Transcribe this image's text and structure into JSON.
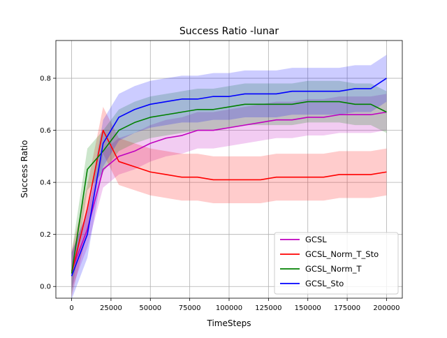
{
  "chart_data": {
    "type": "line",
    "title": "Success Ratio -lunar",
    "xlabel": "TimeSteps",
    "ylabel": "Success Ratio",
    "xlim": [
      -10000,
      210000
    ],
    "ylim": [
      -0.045,
      0.945
    ],
    "xticks": [
      0,
      25000,
      50000,
      75000,
      100000,
      125000,
      150000,
      175000,
      200000
    ],
    "yticks": [
      0.0,
      0.2,
      0.4,
      0.6,
      0.8
    ],
    "grid": true,
    "legend_position": "lower-right",
    "shaded_bands": true,
    "series": [
      {
        "name": "GCSL",
        "color": "#bf00bf",
        "x": [
          0,
          10000,
          20000,
          30000,
          40000,
          50000,
          60000,
          70000,
          80000,
          90000,
          100000,
          110000,
          120000,
          130000,
          140000,
          150000,
          160000,
          170000,
          180000,
          190000,
          200000
        ],
        "y": [
          0.06,
          0.22,
          0.45,
          0.5,
          0.52,
          0.55,
          0.57,
          0.58,
          0.6,
          0.6,
          0.61,
          0.62,
          0.63,
          0.64,
          0.64,
          0.65,
          0.65,
          0.66,
          0.66,
          0.66,
          0.67
        ],
        "band": 0.07
      },
      {
        "name": "GCSL_Norm_T_Sto",
        "color": "#ff0000",
        "x": [
          0,
          10000,
          20000,
          30000,
          40000,
          50000,
          60000,
          70000,
          80000,
          90000,
          100000,
          110000,
          120000,
          130000,
          140000,
          150000,
          160000,
          170000,
          180000,
          190000,
          200000
        ],
        "y": [
          0.05,
          0.3,
          0.6,
          0.48,
          0.46,
          0.44,
          0.43,
          0.42,
          0.42,
          0.41,
          0.41,
          0.41,
          0.41,
          0.42,
          0.42,
          0.42,
          0.42,
          0.43,
          0.43,
          0.43,
          0.44
        ],
        "band": 0.09
      },
      {
        "name": "GCSL_Norm_T",
        "color": "#008000",
        "x": [
          0,
          10000,
          20000,
          30000,
          40000,
          50000,
          60000,
          70000,
          80000,
          90000,
          100000,
          110000,
          120000,
          130000,
          140000,
          150000,
          160000,
          170000,
          180000,
          190000,
          200000
        ],
        "y": [
          0.05,
          0.45,
          0.52,
          0.6,
          0.63,
          0.65,
          0.66,
          0.67,
          0.68,
          0.68,
          0.69,
          0.7,
          0.7,
          0.7,
          0.7,
          0.71,
          0.71,
          0.71,
          0.7,
          0.7,
          0.67
        ],
        "band": 0.08
      },
      {
        "name": "GCSL_Sto",
        "color": "#0000ff",
        "x": [
          0,
          10000,
          20000,
          30000,
          40000,
          50000,
          60000,
          70000,
          80000,
          90000,
          100000,
          110000,
          120000,
          130000,
          140000,
          150000,
          160000,
          170000,
          180000,
          190000,
          200000
        ],
        "y": [
          0.04,
          0.2,
          0.55,
          0.65,
          0.68,
          0.7,
          0.71,
          0.72,
          0.72,
          0.73,
          0.73,
          0.74,
          0.74,
          0.74,
          0.75,
          0.75,
          0.75,
          0.75,
          0.76,
          0.76,
          0.8
        ],
        "band": 0.09
      }
    ]
  }
}
